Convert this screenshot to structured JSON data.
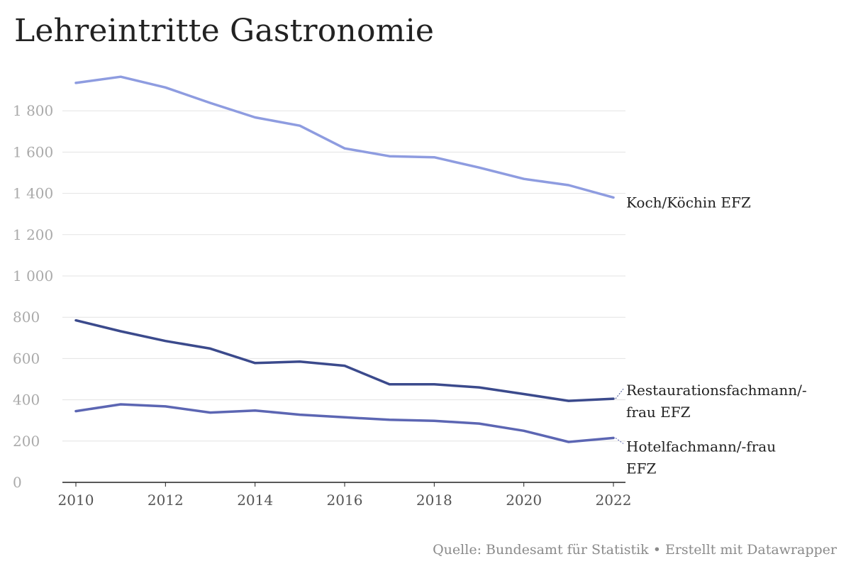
{
  "title": "Lehreintritte Gastronomie",
  "footer": "Quelle: Bundesamt für Statistik • Erstellt mit Datawrapper",
  "chart_data": {
    "type": "line",
    "title": "Lehreintritte Gastronomie",
    "xlabel": "",
    "ylabel": "",
    "x": [
      2010,
      2011,
      2012,
      2013,
      2014,
      2015,
      2016,
      2017,
      2018,
      2019,
      2020,
      2021,
      2022
    ],
    "xticks": [
      "2010",
      "2012",
      "2014",
      "2016",
      "2018",
      "2020",
      "2022"
    ],
    "xtick_values": [
      2010,
      2012,
      2014,
      2016,
      2018,
      2020,
      2022
    ],
    "yticks": [
      "0",
      "200",
      "400",
      "600",
      "800",
      "1 000",
      "1 200",
      "1 400",
      "1 600",
      "1 800"
    ],
    "ytick_values": [
      0,
      200,
      400,
      600,
      800,
      1000,
      1200,
      1400,
      1600,
      1800
    ],
    "xlim": [
      2010,
      2022
    ],
    "ylim": [
      0,
      2000
    ],
    "grid": true,
    "legend": "direct labels at line ends (right)",
    "series": [
      {
        "name": "Koch/Köchin EFZ",
        "label_lines": [
          "Koch/Köchin EFZ"
        ],
        "color": "#8e9ce0",
        "values": [
          1935,
          1965,
          1913,
          1838,
          1768,
          1728,
          1618,
          1580,
          1575,
          1525,
          1470,
          1440,
          1380
        ]
      },
      {
        "name": "Restaurationsfachmann/-frau EFZ",
        "label_lines": [
          "Restaurationsfachmann/-",
          "frau EFZ"
        ],
        "color": "#3b4a8c",
        "values": [
          785,
          732,
          685,
          648,
          578,
          585,
          565,
          475,
          475,
          460,
          428,
          395,
          405
        ]
      },
      {
        "name": "Hotelfachmann/-frau EFZ",
        "label_lines": [
          "Hotelfachmann/-frau",
          "EFZ"
        ],
        "color": "#5c66b3",
        "values": [
          345,
          378,
          368,
          338,
          348,
          328,
          315,
          303,
          298,
          285,
          250,
          196,
          215
        ]
      }
    ]
  }
}
